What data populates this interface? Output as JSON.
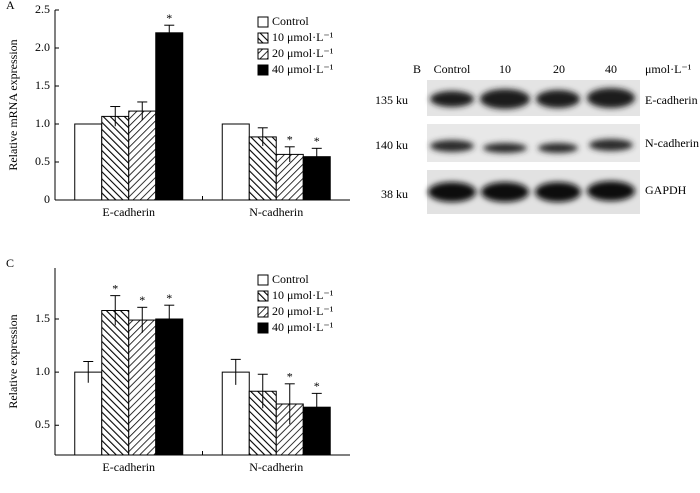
{
  "chart_data": [
    {
      "type": "bar",
      "panel": "A",
      "ylabel": "Relative mRNA expression",
      "categories": [
        "E-cadherin",
        "N-cadherin"
      ],
      "ylim": [
        0,
        2.5
      ],
      "yticks": [
        0,
        0.5,
        {
          "value": 1,
          "label": "1.0"
        },
        1.5,
        {
          "value": 2,
          "label": "2.0"
        },
        2.5
      ],
      "series": [
        {
          "name": "Control",
          "color": "#ffffff",
          "pattern": "none",
          "values": [
            1.0,
            1.0
          ],
          "errors": [
            0,
            0
          ],
          "annotations": [
            null,
            null
          ]
        },
        {
          "name": "10 μmol·L⁻¹",
          "color": "#ffffff",
          "pattern": "back",
          "values": [
            1.1,
            0.83
          ],
          "errors": [
            0.13,
            0.12
          ],
          "annotations": [
            null,
            null
          ]
        },
        {
          "name": "20 μmol·L⁻¹",
          "color": "#ffffff",
          "pattern": "forward",
          "values": [
            1.17,
            0.6
          ],
          "errors": [
            0.12,
            0.1
          ],
          "annotations": [
            null,
            "*"
          ]
        },
        {
          "name": "40 μmol·L⁻¹",
          "color": "#000000",
          "pattern": "none",
          "values": [
            2.2,
            0.57
          ],
          "errors": [
            0.1,
            0.11
          ],
          "annotations": [
            "*",
            "*"
          ]
        }
      ]
    },
    {
      "type": "bar",
      "panel": "C",
      "ylabel": "Relative expression",
      "categories": [
        "E-cadherin",
        "N-cadherin"
      ],
      "ylim": [
        0.22,
        1.98
      ],
      "yticks": [
        0.5,
        {
          "value": 1,
          "label": "1.0"
        },
        1.5
      ],
      "series": [
        {
          "name": "Control",
          "color": "#ffffff",
          "pattern": "none",
          "values": [
            1.0,
            1.0
          ],
          "errors": [
            0.1,
            0.12
          ],
          "annotations": [
            null,
            null
          ]
        },
        {
          "name": "10 μmol·L⁻¹",
          "color": "#ffffff",
          "pattern": "back",
          "values": [
            1.58,
            0.82
          ],
          "errors": [
            0.14,
            0.16
          ],
          "annotations": [
            "*",
            null
          ]
        },
        {
          "name": "20 μmol·L⁻¹",
          "color": "#ffffff",
          "pattern": "forward",
          "values": [
            1.49,
            0.7
          ],
          "errors": [
            0.12,
            0.19
          ],
          "annotations": [
            "*",
            "*"
          ]
        },
        {
          "name": "40 μmol·L⁻¹",
          "color": "#000000",
          "pattern": "none",
          "values": [
            1.5,
            0.67
          ],
          "errors": [
            0.13,
            0.13
          ],
          "annotations": [
            "*",
            "*"
          ]
        }
      ]
    }
  ],
  "blot": {
    "panel": "B",
    "unit": "μmol·L⁻¹",
    "lanes": [
      "Control",
      "10",
      "20",
      "40"
    ],
    "rows": [
      {
        "size": "135 ku",
        "protein": "E-cadherin"
      },
      {
        "size": "140 ku",
        "protein": "N-cadherin"
      },
      {
        "size": "38 ku",
        "protein": "GAPDH"
      }
    ]
  }
}
